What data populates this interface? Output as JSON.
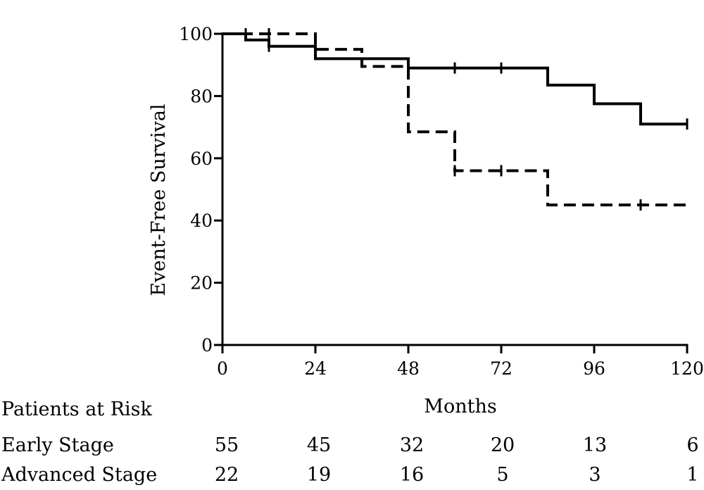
{
  "chart_data": {
    "type": "line",
    "step": true,
    "xlabel": "Months",
    "ylabel": "Event-Free Survival",
    "xlim": [
      0,
      120
    ],
    "ylim": [
      0,
      100
    ],
    "x_ticks": [
      0,
      24,
      48,
      72,
      96,
      120
    ],
    "y_ticks": [
      0,
      20,
      40,
      60,
      80,
      100
    ],
    "grid": false,
    "series": [
      {
        "line_style": "solid",
        "color": "#000000",
        "points": [
          [
            0,
            100
          ],
          [
            6,
            100
          ],
          [
            6,
            98
          ],
          [
            12,
            98
          ],
          [
            12,
            96
          ],
          [
            24,
            96
          ],
          [
            24,
            92
          ],
          [
            48,
            92
          ],
          [
            48,
            89
          ],
          [
            84,
            89
          ],
          [
            84,
            83.5
          ],
          [
            96,
            83.5
          ],
          [
            96,
            77.5
          ],
          [
            108,
            77.5
          ],
          [
            108,
            71
          ],
          [
            120,
            71
          ]
        ],
        "censor_x": [
          120
        ]
      },
      {
        "line_style": "dashed",
        "color": "#000000",
        "points": [
          [
            0,
            100
          ],
          [
            24,
            100
          ],
          [
            24,
            95
          ],
          [
            36,
            95
          ],
          [
            36,
            89.5
          ],
          [
            48,
            89.5
          ],
          [
            48,
            68.5
          ],
          [
            60,
            68.5
          ],
          [
            60,
            56
          ],
          [
            84,
            56
          ],
          [
            84,
            45
          ],
          [
            120,
            45
          ]
        ],
        "censor_x": [
          6,
          12,
          24,
          60,
          72,
          108
        ]
      }
    ],
    "solid_censor_x": [
      12,
      60,
      72
    ],
    "at_risk": {
      "heading": "Patients at Risk",
      "rows": [
        {
          "label": "Early Stage",
          "values": [
            "55",
            "45",
            "32",
            "20",
            "13",
            "6"
          ]
        },
        {
          "label": "Advanced Stage",
          "values": [
            "22",
            "19",
            "16",
            "5",
            "3",
            "1"
          ]
        }
      ]
    }
  }
}
